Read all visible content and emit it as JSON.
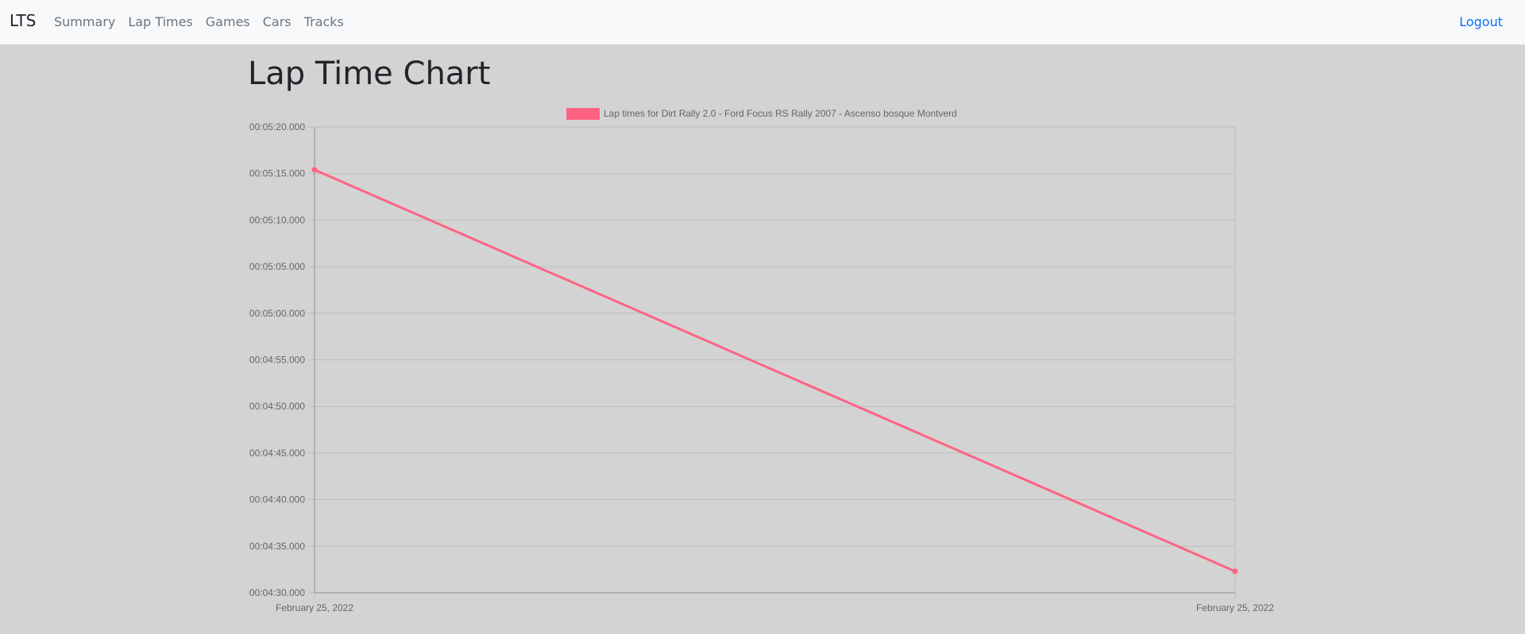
{
  "nav": {
    "brand": "LTS",
    "links": [
      "Summary",
      "Lap Times",
      "Games",
      "Cars",
      "Tracks"
    ],
    "logout": "Logout"
  },
  "page": {
    "title": "Lap Time Chart"
  },
  "chart_data": {
    "type": "line",
    "x": [
      "February 25, 2022",
      "February 25, 2022"
    ],
    "series": [
      {
        "name": "Lap times for Dirt Rally 2.0 - Ford Focus RS Rally 2007 - Ascenso bosque Montverd",
        "values": [
          "00:05:15.400",
          "00:04:32.300"
        ],
        "color": "#ff6384"
      }
    ],
    "ylim": [
      "00:04:30.000",
      "00:05:20.000"
    ],
    "y_ticks": [
      "00:05:20.000",
      "00:05:15.000",
      "00:05:10.000",
      "00:05:05.000",
      "00:05:00.000",
      "00:04:55.000",
      "00:04:50.000",
      "00:04:45.000",
      "00:04:40.000",
      "00:04:35.000",
      "00:04:30.000"
    ],
    "grid": true,
    "legend_position": "top"
  }
}
